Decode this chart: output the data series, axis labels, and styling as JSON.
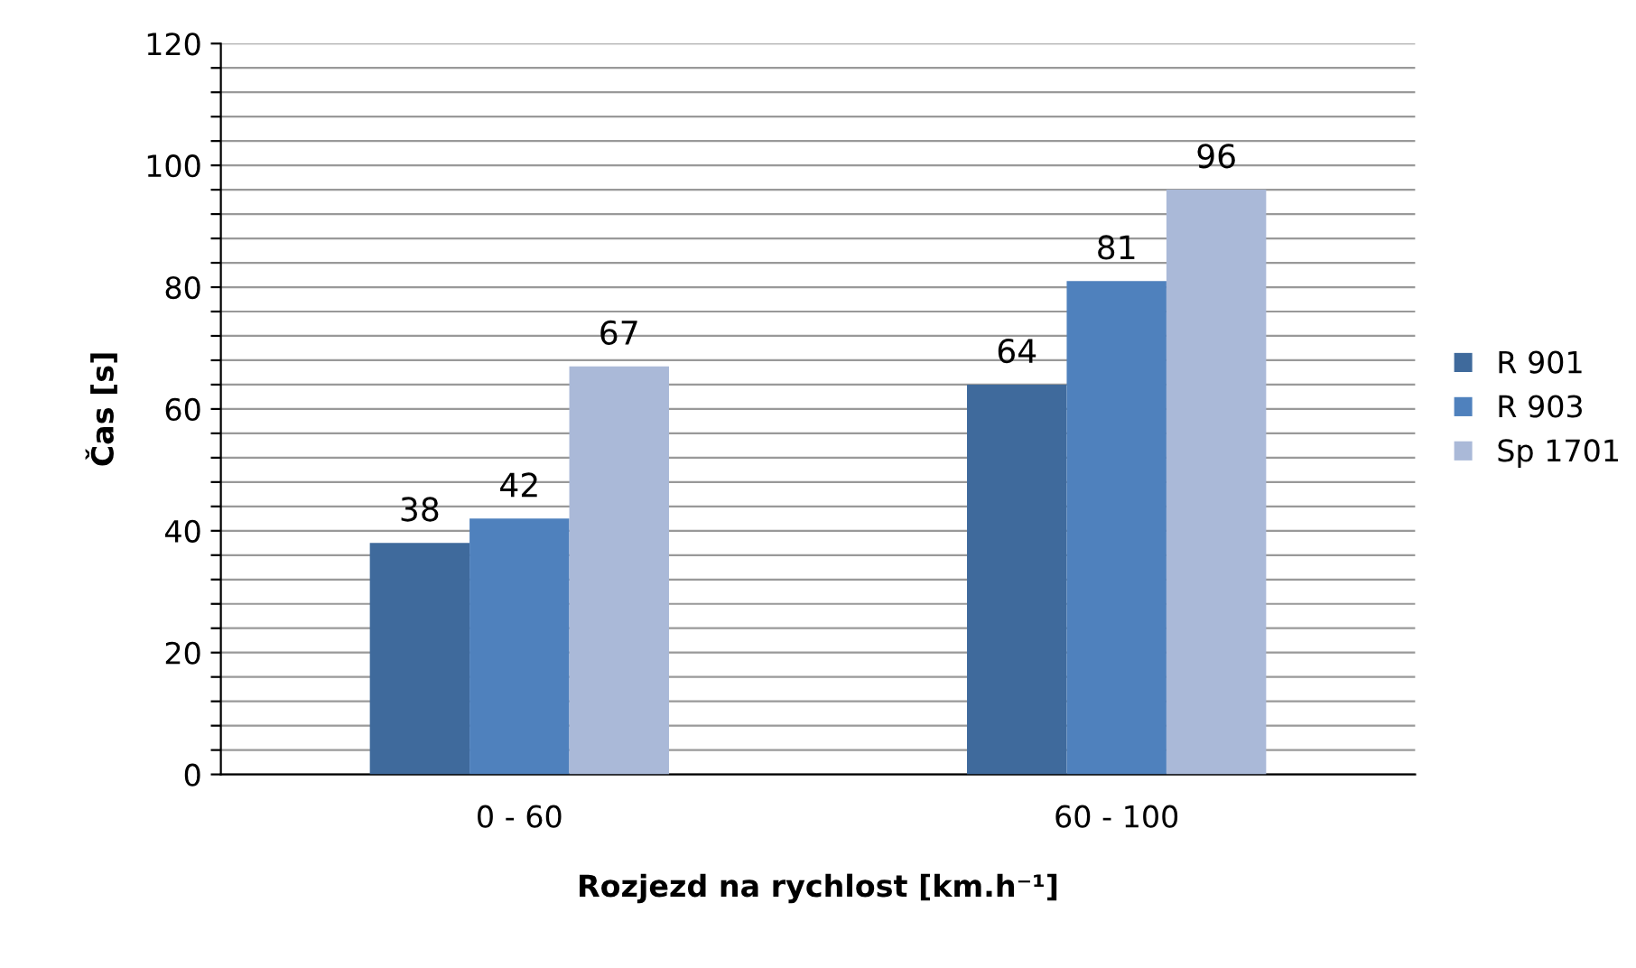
{
  "chart_data": {
    "type": "bar",
    "categories": [
      "0 - 60",
      "60 - 100"
    ],
    "series": [
      {
        "name": "R 901",
        "color": "#3f6a9c",
        "values": [
          38,
          64
        ]
      },
      {
        "name": "R 903",
        "color": "#4f81bd",
        "values": [
          42,
          81
        ]
      },
      {
        "name": "Sp 1701",
        "color": "#aab9d8",
        "values": [
          67,
          96
        ]
      }
    ],
    "xlabel": "Rozjezd na rychlost [km.h⁻¹]",
    "ylabel": "Čas [s]",
    "ylim": [
      0,
      120
    ],
    "yticks": [
      0,
      {
        "value": 4,
        "label": null
      },
      {
        "value": 8,
        "label": null
      },
      {
        "value": 12,
        "label": null
      },
      {
        "value": 16,
        "label": null
      },
      20,
      {
        "value": 24,
        "label": null
      },
      {
        "value": 28,
        "label": null
      },
      {
        "value": 32,
        "label": null
      },
      {
        "value": 36,
        "label": null
      },
      40,
      {
        "value": 44,
        "label": null
      },
      {
        "value": 48,
        "label": null
      },
      {
        "value": 52,
        "label": null
      },
      {
        "value": 56,
        "label": null
      },
      60,
      {
        "value": 64,
        "label": null
      },
      {
        "value": 68,
        "label": null
      },
      {
        "value": 72,
        "label": null
      },
      {
        "value": 76,
        "label": null
      },
      80,
      {
        "value": 84,
        "label": null
      },
      {
        "value": 88,
        "label": null
      },
      {
        "value": 92,
        "label": null
      },
      {
        "value": 96,
        "label": null
      },
      100,
      {
        "value": 104,
        "label": null
      },
      {
        "value": 108,
        "label": null
      },
      {
        "value": 112,
        "label": null
      },
      {
        "value": 116,
        "label": null
      },
      120
    ],
    "grid": "y",
    "data_labels": true,
    "legend": "right"
  }
}
